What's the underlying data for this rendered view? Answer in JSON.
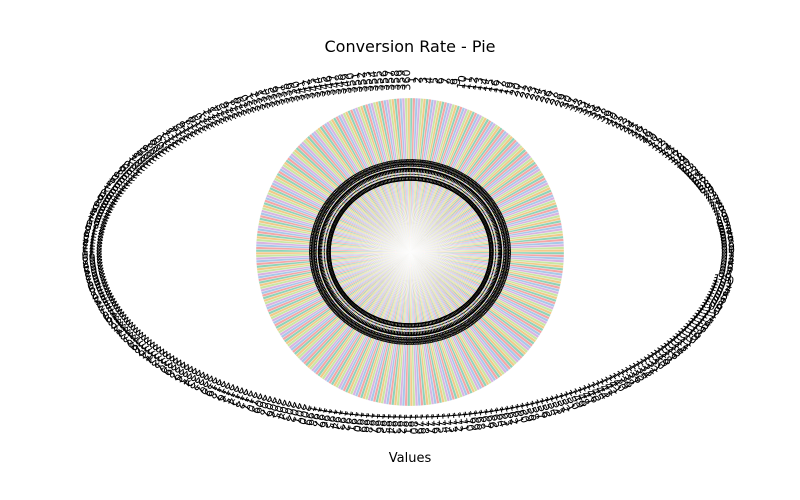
{
  "chart_data": {
    "type": "pie",
    "title": "Conversion Rate - Pie",
    "xlabel": "Values",
    "ylabel": "",
    "slice_count": 360,
    "values": [],
    "colors": [
      "#8fd3b8",
      "#f4a6a6",
      "#a8c8e8",
      "#d8b4e2",
      "#c9e6a3",
      "#f2c98a"
    ],
    "slice_labels_shown": true,
    "percent_labels_shown": true,
    "start_angle_deg": 90,
    "legend": "none"
  }
}
